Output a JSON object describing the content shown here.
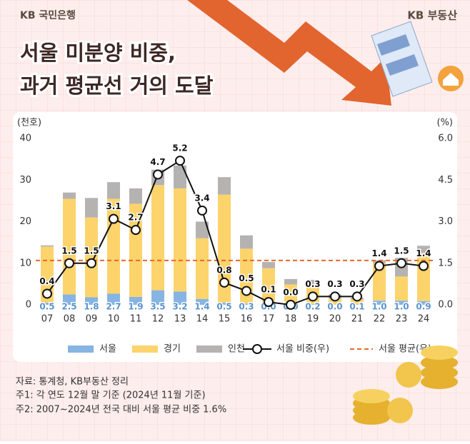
{
  "header": {
    "left_logo": "KB 국민은행",
    "right_logo": "KB 부동산",
    "title_lines": [
      "서울 미분양 비중,",
      "과거 평균선 거의 도달"
    ]
  },
  "chart_data": {
    "type": "bar",
    "y_axis_label": "(천호)",
    "y2_axis_label": "(%)",
    "categories": [
      "07",
      "08",
      "09",
      "10",
      "11",
      "12",
      "13",
      "14",
      "15",
      "16",
      "17",
      "18",
      "19",
      "20",
      "21",
      "22",
      "23",
      "24"
    ],
    "ylim": [
      0,
      40
    ],
    "yticks": [
      0,
      10,
      20,
      30,
      40
    ],
    "y2lim": [
      0,
      6
    ],
    "y2ticks": [
      {
        "value": 0,
        "label": "0.0"
      },
      1.5,
      {
        "value": 3,
        "label": "3.0"
      },
      4.5,
      {
        "value": 6,
        "label": "6.0"
      }
    ],
    "series": [
      {
        "name": "서울",
        "type": "bar",
        "color": "#86b4e3",
        "values": [
          0.5,
          2.5,
          1.8,
          2.7,
          1.9,
          3.5,
          3.2,
          1.4,
          0.5,
          0.3,
          0.0,
          0.0,
          0.2,
          0.0,
          0.1,
          1.0,
          1.0,
          0.9
        ],
        "value_labels": [
          "0.5",
          "2.5",
          "1.8",
          "2.7",
          "1.9",
          "3.5",
          "3.2",
          "1.4",
          "0.5",
          "0.3",
          "0.0",
          "0.0",
          "0.2",
          "0.0",
          "0.1",
          "1.0",
          "1.0",
          "0.9"
        ]
      },
      {
        "name": "경기",
        "type": "bar",
        "color": "#fdd36b",
        "values": [
          13.5,
          23,
          19.2,
          22.8,
          22.4,
          25.3,
          24.8,
          14.6,
          26,
          13.2,
          8.8,
          4.9,
          4.3,
          1.5,
          1.2,
          9,
          5.8,
          11.6
        ]
      },
      {
        "name": "인천",
        "type": "bar",
        "color": "#b5b2b2",
        "values": [
          0.3,
          1.5,
          4.7,
          4,
          3.7,
          3.7,
          5.5,
          4,
          4.2,
          3.2,
          1.5,
          1.3,
          1.5,
          1,
          0.4,
          0.7,
          4.5,
          1.7
        ]
      },
      {
        "name": "서울 비중(우)",
        "type": "line",
        "axis": "y2",
        "color": "#111111",
        "values": [
          0.4,
          1.5,
          1.5,
          3.1,
          2.7,
          4.7,
          5.2,
          3.4,
          0.8,
          0.5,
          0.1,
          0.0,
          0.3,
          0.3,
          0.3,
          1.4,
          1.5,
          1.4
        ],
        "value_labels": [
          "0.4",
          "1.5",
          "1.5",
          "3.1",
          "2.7",
          "4.7",
          "5.2",
          "3.4",
          "0.8",
          "0.5",
          "0.1",
          "0.0",
          "0.3",
          "0.3",
          "0.3",
          "1.4",
          "1.5",
          "1.4"
        ]
      }
    ],
    "reference_lines": [
      {
        "name": "서울 평균(우)",
        "value": 1.6,
        "axis": "y2",
        "color": "#e8682c",
        "dashed": true
      }
    ]
  },
  "notes": [
    "자료: 통계청, KB부동산 정리",
    "주1: 각 연도 12월 말 기준 (2024년 11월 기준)",
    "주2: 2007~2024년 전국 대비 서울 평균 비중 1.6%"
  ]
}
